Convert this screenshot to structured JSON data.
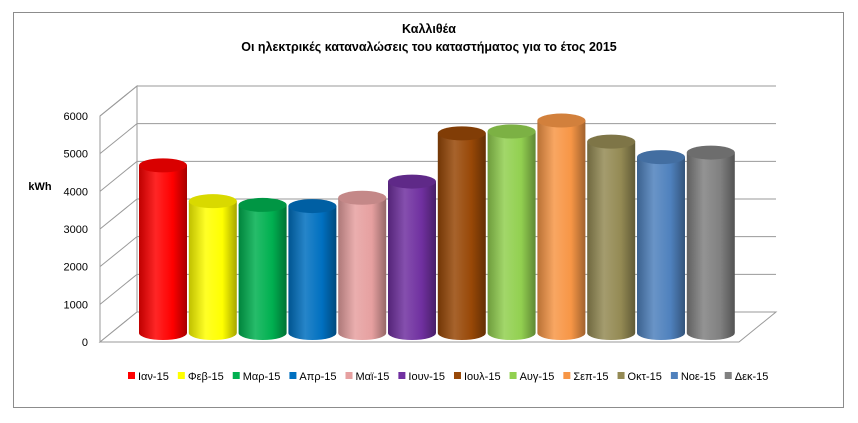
{
  "chart_data": {
    "type": "bar",
    "title": "Καλλιθέα",
    "subtitle": "Οι ηλεκτρικές καταναλώσεις του καταστήματος για το έτος 2015",
    "ylabel": "kWh",
    "xlabel": "",
    "ylim": [
      0,
      6000
    ],
    "yticks": [
      "0",
      "1000",
      "2000",
      "3000",
      "4000",
      "5000",
      "6000"
    ],
    "grid": true,
    "legend_position": "bottom",
    "categories": [
      "Ιαν-15",
      "Φεβ-15",
      "Μαρ-15",
      "Απρ-15",
      "Μαϊ-15",
      "Ιουν-15",
      "Ιουλ-15",
      "Αυγ-15",
      "Σεπ-15",
      "Οκτ-15",
      "Νοε-15",
      "Δεκ-15"
    ],
    "values": [
      4450,
      3500,
      3400,
      3370,
      3590,
      4020,
      5300,
      5350,
      5640,
      5080,
      4670,
      4790
    ],
    "colors": [
      "#ff0000",
      "#ffff00",
      "#00b050",
      "#0070c0",
      "#e6a0a0",
      "#7030a0",
      "#984807",
      "#92d050",
      "#f79646",
      "#948a54",
      "#4f81bd",
      "#808080"
    ]
  }
}
